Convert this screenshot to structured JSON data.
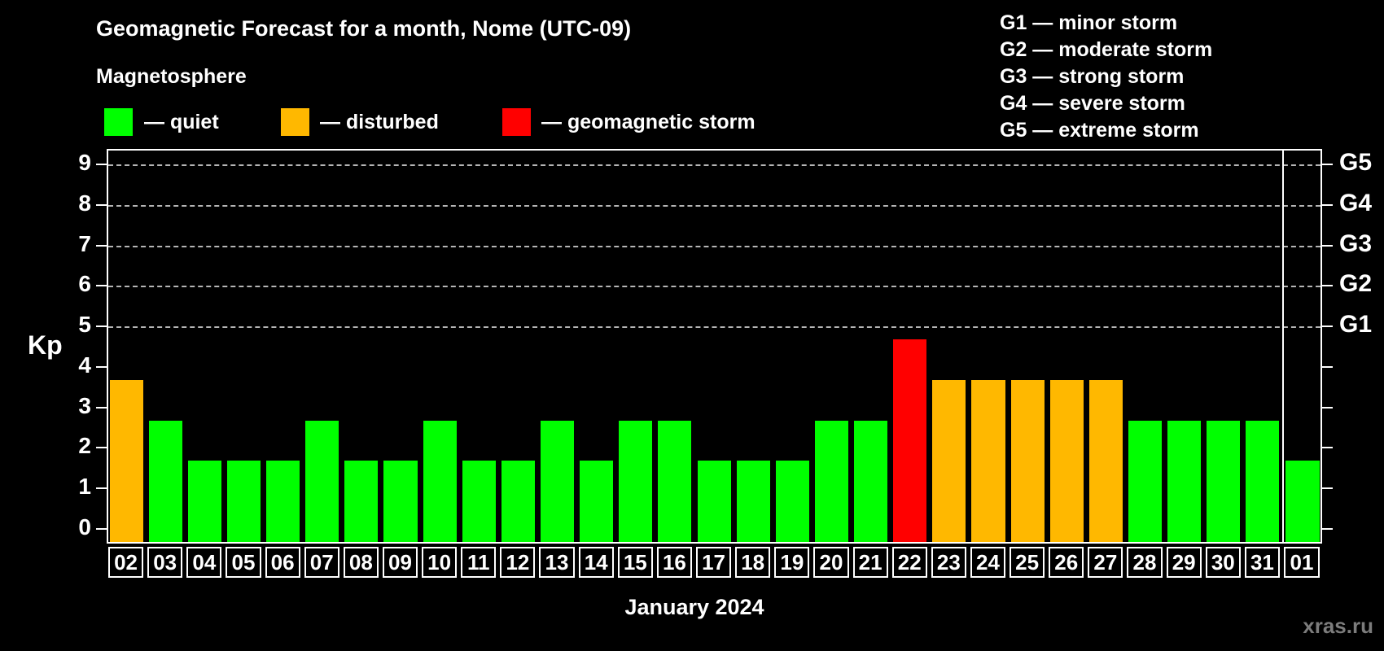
{
  "title": "Geomagnetic Forecast for a month, Nome (UTC-09)",
  "subtitle": "Magnetosphere",
  "legend": {
    "items": [
      {
        "key": "quiet",
        "label": "— quiet",
        "color": "#00ff00"
      },
      {
        "key": "disturbed",
        "label": "— disturbed",
        "color": "#ffb800"
      },
      {
        "key": "storm",
        "label": "— geomagnetic storm",
        "color": "#ff0000"
      }
    ]
  },
  "storm_scale_legend": [
    "G1 — minor storm",
    "G2 — moderate storm",
    "G3 — strong storm",
    "G4 — severe storm",
    "G5 — extreme storm"
  ],
  "watermark": "xras.ru",
  "chart_data": {
    "type": "bar",
    "title": "Geomagnetic Forecast for a month, Nome (UTC-09)",
    "xlabel": "January 2024",
    "ylabel": "Kp",
    "ylim": [
      0,
      9
    ],
    "grid": "dashed horizontal lines at Kp 5-9 only",
    "gridlines_at": [
      5,
      6,
      7,
      8,
      9
    ],
    "y_ticks": [
      0,
      1,
      2,
      3,
      4,
      5,
      6,
      7,
      8,
      9
    ],
    "right_axis": [
      {
        "kp": 5,
        "label": "G1"
      },
      {
        "kp": 6,
        "label": "G2"
      },
      {
        "kp": 7,
        "label": "G3"
      },
      {
        "kp": 8,
        "label": "G4"
      },
      {
        "kp": 9,
        "label": "G5"
      }
    ],
    "state_colors": {
      "quiet": "#00ff00",
      "disturbed": "#ffb800",
      "storm": "#ff0000"
    },
    "month_boundary_index": 30,
    "categories": [
      "02",
      "03",
      "04",
      "05",
      "06",
      "07",
      "08",
      "09",
      "10",
      "11",
      "12",
      "13",
      "14",
      "15",
      "16",
      "17",
      "18",
      "19",
      "20",
      "21",
      "22",
      "23",
      "24",
      "25",
      "26",
      "27",
      "28",
      "29",
      "30",
      "31",
      "01"
    ],
    "values": [
      4,
      3,
      2,
      2,
      2,
      3,
      2,
      2,
      3,
      2,
      2,
      3,
      2,
      3,
      3,
      2,
      2,
      2,
      3,
      3,
      5,
      4,
      4,
      4,
      4,
      4,
      3,
      3,
      3,
      3,
      2
    ],
    "series": [
      {
        "day": "02",
        "kp": 4,
        "state": "disturbed"
      },
      {
        "day": "03",
        "kp": 3,
        "state": "quiet"
      },
      {
        "day": "04",
        "kp": 2,
        "state": "quiet"
      },
      {
        "day": "05",
        "kp": 2,
        "state": "quiet"
      },
      {
        "day": "06",
        "kp": 2,
        "state": "quiet"
      },
      {
        "day": "07",
        "kp": 3,
        "state": "quiet"
      },
      {
        "day": "08",
        "kp": 2,
        "state": "quiet"
      },
      {
        "day": "09",
        "kp": 2,
        "state": "quiet"
      },
      {
        "day": "10",
        "kp": 3,
        "state": "quiet"
      },
      {
        "day": "11",
        "kp": 2,
        "state": "quiet"
      },
      {
        "day": "12",
        "kp": 2,
        "state": "quiet"
      },
      {
        "day": "13",
        "kp": 3,
        "state": "quiet"
      },
      {
        "day": "14",
        "kp": 2,
        "state": "quiet"
      },
      {
        "day": "15",
        "kp": 3,
        "state": "quiet"
      },
      {
        "day": "16",
        "kp": 3,
        "state": "quiet"
      },
      {
        "day": "17",
        "kp": 2,
        "state": "quiet"
      },
      {
        "day": "18",
        "kp": 2,
        "state": "quiet"
      },
      {
        "day": "19",
        "kp": 2,
        "state": "quiet"
      },
      {
        "day": "20",
        "kp": 3,
        "state": "quiet"
      },
      {
        "day": "21",
        "kp": 3,
        "state": "quiet"
      },
      {
        "day": "22",
        "kp": 5,
        "state": "storm"
      },
      {
        "day": "23",
        "kp": 4,
        "state": "disturbed"
      },
      {
        "day": "24",
        "kp": 4,
        "state": "disturbed"
      },
      {
        "day": "25",
        "kp": 4,
        "state": "disturbed"
      },
      {
        "day": "26",
        "kp": 4,
        "state": "disturbed"
      },
      {
        "day": "27",
        "kp": 4,
        "state": "disturbed"
      },
      {
        "day": "28",
        "kp": 3,
        "state": "quiet"
      },
      {
        "day": "29",
        "kp": 3,
        "state": "quiet"
      },
      {
        "day": "30",
        "kp": 3,
        "state": "quiet"
      },
      {
        "day": "31",
        "kp": 3,
        "state": "quiet"
      },
      {
        "day": "01",
        "kp": 2,
        "state": "quiet"
      }
    ]
  }
}
